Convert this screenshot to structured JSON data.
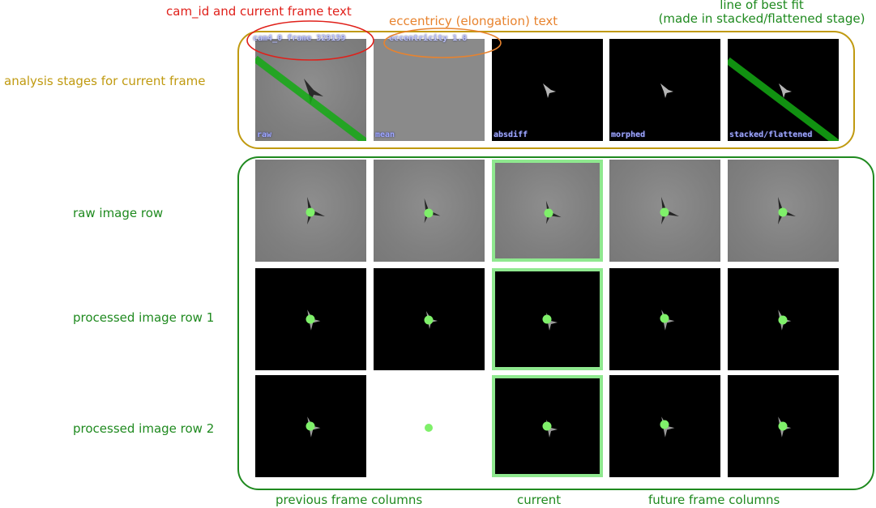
{
  "annotations": {
    "cam_text": "cam_id and current frame text",
    "eccentricity_text": "eccentricy (elongation) text",
    "best_fit_line1": "line of best fit",
    "best_fit_line2": "(made in stacked/flattened stage)",
    "analysis_stages": "analysis stages for current frame",
    "raw_row": "raw image row",
    "processed_row_1": "processed image row 1",
    "processed_row_2": "processed image row 2",
    "previous_columns": "previous frame columns",
    "current_column": "current",
    "future_columns": "future frame columns"
  },
  "overlay": {
    "cam_frame": "cam4_0 frame  329159",
    "eccentricity": "eccentricity   1.8"
  },
  "stages": [
    {
      "label": "raw"
    },
    {
      "label": "mean"
    },
    {
      "label": "absdiff"
    },
    {
      "label": "morphed"
    },
    {
      "label": "stacked/flattened"
    }
  ],
  "colors": {
    "red": "#e0201a",
    "orange": "#e8832e",
    "gold": "#c09a10",
    "green": "#1f8a1f",
    "dot": "#7ff06a",
    "current_border": "#8fe88f"
  }
}
